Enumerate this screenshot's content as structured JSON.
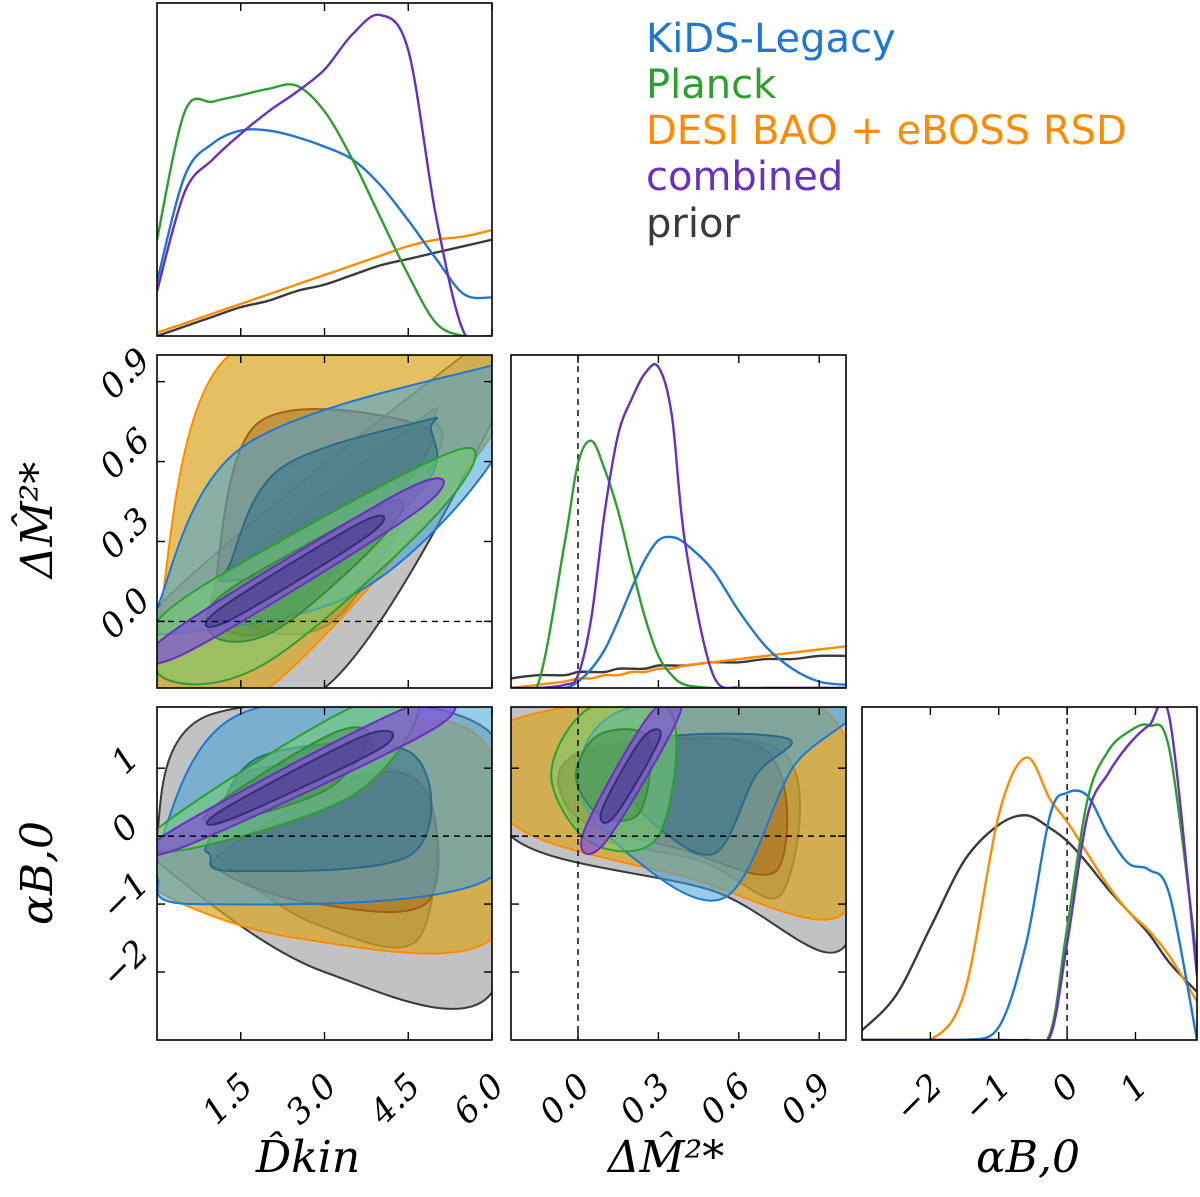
{
  "chart_data": {
    "type": "corner",
    "parameters": [
      {
        "id": "dkin",
        "label": "D̂kin",
        "range": [
          0.0,
          6.0
        ],
        "ticks": [
          "1.5",
          "3.0",
          "4.5",
          "6.0"
        ],
        "tick_values": [
          1.5,
          3.0,
          4.5,
          6.0
        ]
      },
      {
        "id": "dm2",
        "label": "ΔM̂²*",
        "range": [
          -0.25,
          1.0
        ],
        "ticks": [
          "0.0",
          "0.3",
          "0.6",
          "0.9"
        ],
        "tick_values": [
          0.0,
          0.3,
          0.6,
          0.9
        ]
      },
      {
        "id": "ab0",
        "label": "αB,0",
        "range": [
          -3.0,
          1.9
        ],
        "ticks": [
          "−2",
          "−1",
          "0",
          "1"
        ],
        "tick_values": [
          -2,
          -1,
          0,
          1
        ]
      }
    ],
    "axis_labels": {
      "dkin": "D̂kin",
      "dm2": "ΔM̂²*",
      "ab0": "αB,0"
    },
    "reference_values": {
      "dm2": 0.0,
      "ab0": 0.0
    },
    "series": [
      {
        "name": "KiDS-Legacy",
        "color": "#1f77d4"
      },
      {
        "name": "Planck",
        "color": "#2ca02c"
      },
      {
        "name": "DESI BAO + eBOSS RSD",
        "color": "#ff8c00"
      },
      {
        "name": "combined",
        "color": "#6a2fc0"
      },
      {
        "name": "prior",
        "color": "#3a3a3a"
      }
    ],
    "marginals": {
      "dkin": {
        "x": [
          0.0,
          0.5,
          1.0,
          1.5,
          2.0,
          2.5,
          3.0,
          3.5,
          4.0,
          4.5,
          5.0,
          5.5,
          6.0
        ],
        "KiDS-Legacy": [
          0.17,
          0.5,
          0.6,
          0.64,
          0.64,
          0.62,
          0.59,
          0.55,
          0.47,
          0.36,
          0.24,
          0.13,
          0.12
        ],
        "Planck": [
          0.3,
          0.7,
          0.73,
          0.75,
          0.77,
          0.78,
          0.7,
          0.55,
          0.37,
          0.19,
          0.04,
          0.0,
          0.0
        ],
        "DESI BAO + eBOSS RSD": [
          0.01,
          0.04,
          0.07,
          0.1,
          0.13,
          0.16,
          0.19,
          0.22,
          0.25,
          0.28,
          0.3,
          0.31,
          0.33
        ],
        "combined": [
          0.14,
          0.45,
          0.55,
          0.63,
          0.7,
          0.76,
          0.83,
          0.94,
          1.0,
          0.89,
          0.37,
          0.01,
          0.0
        ],
        "prior": [
          0.0,
          0.03,
          0.06,
          0.09,
          0.11,
          0.14,
          0.16,
          0.19,
          0.22,
          0.24,
          0.26,
          0.28,
          0.3
        ]
      },
      "dm2": {
        "x": [
          -0.25,
          -0.15,
          -0.05,
          0.0,
          0.05,
          0.1,
          0.15,
          0.2,
          0.25,
          0.3,
          0.35,
          0.4,
          0.5,
          0.6,
          0.7,
          0.8,
          0.9,
          1.0
        ],
        "KiDS-Legacy": [
          0.0,
          0.0,
          0.0,
          0.02,
          0.06,
          0.12,
          0.21,
          0.31,
          0.4,
          0.46,
          0.47,
          0.45,
          0.37,
          0.24,
          0.13,
          0.06,
          0.02,
          0.01
        ],
        "Planck": [
          0.0,
          0.01,
          0.45,
          0.7,
          0.77,
          0.68,
          0.55,
          0.38,
          0.22,
          0.1,
          0.04,
          0.01,
          0.0,
          0.0,
          0.0,
          0.0,
          0.0,
          0.0
        ],
        "DESI BAO + eBOSS RSD": [
          0.0,
          0.01,
          0.02,
          0.03,
          0.03,
          0.04,
          0.04,
          0.05,
          0.05,
          0.06,
          0.06,
          0.07,
          0.08,
          0.09,
          0.1,
          0.11,
          0.12,
          0.13
        ],
        "combined": [
          0.0,
          0.0,
          0.01,
          0.04,
          0.22,
          0.55,
          0.79,
          0.9,
          0.98,
          1.0,
          0.85,
          0.45,
          0.05,
          0.0,
          0.0,
          0.0,
          0.0,
          0.0
        ],
        "prior": [
          0.03,
          0.04,
          0.04,
          0.05,
          0.05,
          0.05,
          0.06,
          0.06,
          0.06,
          0.07,
          0.07,
          0.07,
          0.08,
          0.08,
          0.09,
          0.09,
          0.1,
          0.1
        ]
      },
      "ab0": {
        "x": [
          -3.0,
          -2.5,
          -2.0,
          -1.5,
          -1.0,
          -0.6,
          -0.25,
          0.0,
          0.3,
          0.6,
          0.9,
          1.2,
          1.5,
          1.9
        ],
        "KiDS-Legacy": [
          0.0,
          0.0,
          0.0,
          0.0,
          0.04,
          0.3,
          0.7,
          0.77,
          0.76,
          0.64,
          0.55,
          0.53,
          0.45,
          0.0
        ],
        "Planck": [
          0.0,
          0.0,
          0.0,
          0.0,
          0.0,
          0.0,
          0.02,
          0.35,
          0.75,
          0.9,
          0.96,
          0.98,
          0.9,
          0.25
        ],
        "DESI BAO + eBOSS RSD": [
          0.0,
          0.0,
          0.0,
          0.15,
          0.7,
          0.88,
          0.75,
          0.68,
          0.58,
          0.48,
          0.4,
          0.34,
          0.26,
          0.12
        ],
        "combined": [
          0.0,
          0.0,
          0.0,
          0.0,
          0.0,
          0.0,
          0.01,
          0.3,
          0.7,
          0.83,
          0.92,
          0.98,
          1.0,
          0.2
        ],
        "prior": [
          0.03,
          0.14,
          0.35,
          0.56,
          0.67,
          0.7,
          0.66,
          0.62,
          0.55,
          0.47,
          0.4,
          0.33,
          0.24,
          0.15
        ]
      }
    },
    "contours_2d": {
      "dkin_vs_dm2": {
        "prior": [
          [
            0.0,
            -0.25
          ],
          [
            3.0,
            -0.25
          ],
          [
            6.0,
            0.75
          ],
          [
            6.0,
            1.0
          ],
          [
            5.5,
            1.0
          ],
          [
            0.0,
            0.05
          ]
        ],
        "DESI BAO + eBOSS RSD": [
          [
            0.0,
            -0.25
          ],
          [
            2.0,
            -0.25
          ],
          [
            6.0,
            0.7
          ],
          [
            6.0,
            1.0
          ],
          [
            1.3,
            1.0
          ],
          [
            0.0,
            -0.05
          ]
        ],
        "KiDS-Legacy": [
          [
            0.0,
            0.05
          ],
          [
            1.5,
            0.65
          ],
          [
            5.8,
            0.95
          ],
          [
            6.0,
            0.9
          ],
          [
            6.0,
            0.6
          ],
          [
            3.5,
            0.1
          ],
          [
            0.0,
            -0.05
          ]
        ],
        "Planck": [
          [
            0.0,
            0.0
          ],
          [
            2.2,
            0.3
          ],
          [
            5.5,
            0.65
          ],
          [
            5.0,
            0.4
          ],
          [
            2.0,
            -0.15
          ],
          [
            0.2,
            -0.22
          ]
        ],
        "combined": [
          [
            0.2,
            -0.05
          ],
          [
            4.5,
            0.5
          ],
          [
            4.7,
            0.42
          ],
          [
            0.5,
            -0.12
          ]
        ]
      },
      "dkin_vs_ab0": {
        "prior": [
          [
            0.0,
            0.0
          ],
          [
            1.0,
            1.8
          ],
          [
            6.0,
            1.5
          ],
          [
            6.0,
            -2.3
          ],
          [
            3.0,
            -2.0
          ],
          [
            0.5,
            -0.7
          ]
        ],
        "DESI BAO + eBOSS RSD": [
          [
            0.0,
            -0.2
          ],
          [
            4.0,
            1.6
          ],
          [
            6.0,
            1.2
          ],
          [
            6.0,
            -1.5
          ],
          [
            2.5,
            -1.5
          ],
          [
            0.0,
            -0.8
          ]
        ],
        "KiDS-Legacy": [
          [
            0.0,
            -0.2
          ],
          [
            1.5,
            1.8
          ],
          [
            6.0,
            1.9
          ],
          [
            6.0,
            -0.6
          ],
          [
            0.7,
            -1.0
          ],
          [
            0.0,
            -0.6
          ]
        ],
        "Planck": [
          [
            0.0,
            0.1
          ],
          [
            3.5,
            1.9
          ],
          [
            4.7,
            1.9
          ],
          [
            3.5,
            0.6
          ],
          [
            0.5,
            -0.2
          ]
        ],
        "combined": [
          [
            0.2,
            0.05
          ],
          [
            4.5,
            1.9
          ],
          [
            5.0,
            1.6
          ],
          [
            0.5,
            -0.15
          ]
        ]
      },
      "dm2_vs_ab0": {
        "prior": [
          [
            -0.25,
            1.9
          ],
          [
            1.0,
            1.9
          ],
          [
            1.0,
            -1.6
          ],
          [
            0.5,
            -0.8
          ],
          [
            -0.25,
            0.0
          ]
        ],
        "DESI BAO + eBOSS RSD": [
          [
            -0.25,
            1.7
          ],
          [
            0.9,
            1.9
          ],
          [
            1.0,
            -1.1
          ],
          [
            0.4,
            -0.6
          ],
          [
            -0.25,
            0.2
          ]
        ],
        "KiDS-Legacy": [
          [
            0.0,
            0.8
          ],
          [
            0.2,
            1.9
          ],
          [
            1.0,
            1.9
          ],
          [
            0.8,
            1.0
          ],
          [
            0.55,
            -0.9
          ],
          [
            0.2,
            -0.3
          ]
        ],
        "Planck": [
          [
            -0.1,
            0.9
          ],
          [
            0.05,
            1.9
          ],
          [
            0.35,
            1.8
          ],
          [
            0.3,
            0.0
          ],
          [
            0.05,
            -0.1
          ]
        ],
        "combined": [
          [
            0.02,
            0.05
          ],
          [
            0.27,
            1.8
          ],
          [
            0.38,
            1.8
          ],
          [
            0.1,
            -0.1
          ]
        ]
      }
    },
    "legend": {
      "position": "top-right",
      "entries": [
        "KiDS-Legacy",
        "Planck",
        "DESI BAO + eBOSS RSD",
        "combined",
        "prior"
      ]
    }
  }
}
